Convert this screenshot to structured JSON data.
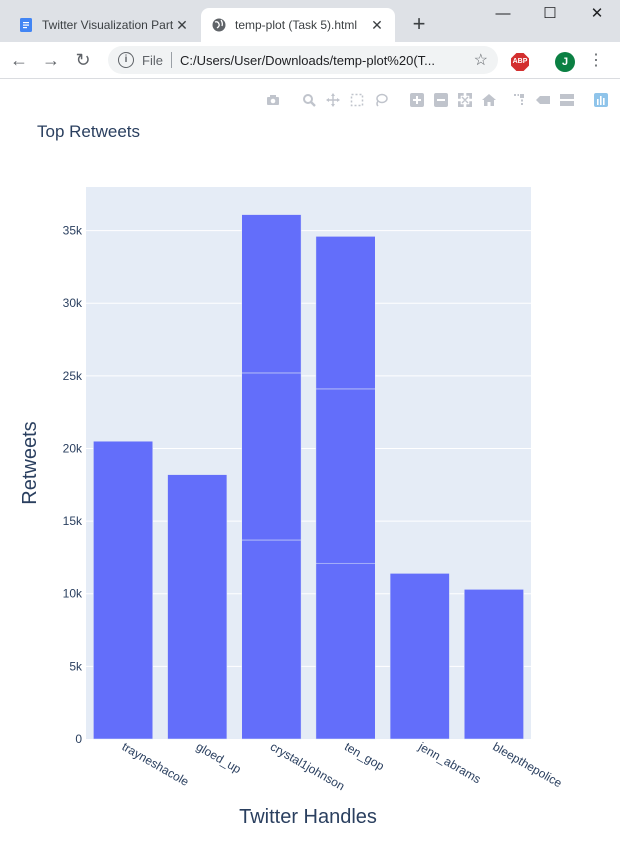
{
  "browser": {
    "tabs": [
      {
        "title": "Twitter Visualization Part",
        "active": false,
        "icon": "docs-icon"
      },
      {
        "title": "temp-plot (Task 5).html",
        "active": true,
        "icon": "globe-icon"
      }
    ],
    "new_tab": "+",
    "window_controls": {
      "minimize": "—",
      "maximize": "☐",
      "close": "✕"
    },
    "address": {
      "scheme_label": "File",
      "url": "C:/Users/User/Downloads/temp-plot%20(T..."
    },
    "extension_label": "ABP",
    "avatar_letter": "J"
  },
  "modebar_icons": [
    "camera-icon",
    "zoom-icon",
    "pan-icon",
    "box-select-icon",
    "lasso-select-icon",
    "zoom-in-icon",
    "zoom-out-icon",
    "autoscale-icon",
    "reset-axes-icon",
    "spike-lines-icon",
    "hover-closest-icon",
    "hover-compare-icon",
    "plotly-logo-icon"
  ],
  "chart_data": {
    "type": "bar",
    "title": "Top Retweets",
    "xlabel": "Twitter Handles",
    "ylabel": "Retweets",
    "categories": [
      "trayneshacole",
      "gloed_up",
      "crystal1johnson",
      "ten_gop",
      "jenn_abrams",
      "bleepthepolice"
    ],
    "stacked_segments": [
      [
        20500
      ],
      [
        18200
      ],
      [
        13700,
        11500,
        10900
      ],
      [
        12100,
        12000,
        10500
      ],
      [
        11400
      ],
      [
        10300
      ]
    ],
    "totals": [
      20500,
      18200,
      36100,
      34600,
      11400,
      10300
    ],
    "ylim": [
      0,
      38000
    ],
    "yticks": [
      {
        "value": 0,
        "label": "0"
      },
      {
        "value": 5000,
        "label": "5k"
      },
      {
        "value": 10000,
        "label": "10k"
      },
      {
        "value": 15000,
        "label": "15k"
      },
      {
        "value": 20000,
        "label": "20k"
      },
      {
        "value": 25000,
        "label": "25k"
      },
      {
        "value": 30000,
        "label": "30k"
      },
      {
        "value": 35000,
        "label": "35k"
      }
    ],
    "bar_color": "#636efa",
    "plot_bg": "#e5ecf6",
    "grid": true,
    "legend": "none"
  }
}
